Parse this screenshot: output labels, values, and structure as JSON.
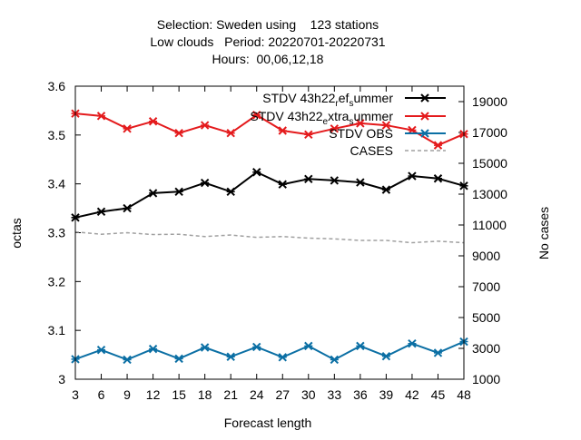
{
  "chart_data": {
    "type": "line",
    "title_lines": [
      "Selection: Sweden using    123 stations",
      "Low clouds   Period: 20220701-20220731",
      "Hours:  00,06,12,18"
    ],
    "xlabel": "Forecast length",
    "ylabel": "octas",
    "y2label": "No cases",
    "x": [
      3,
      6,
      9,
      12,
      15,
      18,
      21,
      24,
      27,
      30,
      33,
      36,
      39,
      42,
      45,
      48
    ],
    "xlim": [
      3,
      48
    ],
    "ylim": [
      3.0,
      3.6
    ],
    "y2lim": [
      1000,
      20000
    ],
    "yticks": [
      "3",
      "3.1",
      "3.2",
      "3.3",
      "3.4",
      "3.5",
      "3.6"
    ],
    "y2ticks": [
      "1000",
      "3000",
      "5000",
      "7000",
      "9000",
      "11000",
      "13000",
      "15000",
      "17000",
      "19000"
    ],
    "legend_position": "top-right",
    "series": [
      {
        "name": "STDV 43h22_ref_summer",
        "legend_main": "STDV 43h22",
        "legend_parts": [
          {
            "t": "r",
            "sub": true
          },
          {
            "t": "ef",
            "sub": false
          },
          {
            "t": "s",
            "sub": true
          },
          {
            "t": "ummer",
            "sub": false
          }
        ],
        "color": "#000000",
        "axis": "y",
        "marker": "x",
        "values": [
          3.331,
          3.343,
          3.35,
          3.381,
          3.384,
          3.402,
          3.384,
          3.424,
          3.399,
          3.41,
          3.407,
          3.403,
          3.388,
          3.416,
          3.411,
          3.396
        ]
      },
      {
        "name": "STDV 43h22_extra_summer",
        "legend_main": "STDV 43h22",
        "legend_parts": [
          {
            "t": "e",
            "sub": true
          },
          {
            "t": "xtra",
            "sub": false
          },
          {
            "t": "s",
            "sub": true
          },
          {
            "t": "ummer",
            "sub": false
          }
        ],
        "color": "#e41a1c",
        "axis": "y",
        "marker": "x",
        "values": [
          3.544,
          3.539,
          3.513,
          3.528,
          3.504,
          3.52,
          3.504,
          3.541,
          3.509,
          3.501,
          3.513,
          3.524,
          3.52,
          3.51,
          3.479,
          3.502
        ]
      },
      {
        "name": "STDV OBS",
        "legend_main": "STDV OBS",
        "legend_parts": [],
        "color": "#0b6fa4",
        "axis": "y",
        "marker": "x",
        "values": [
          3.041,
          3.06,
          3.04,
          3.062,
          3.042,
          3.065,
          3.046,
          3.066,
          3.045,
          3.068,
          3.04,
          3.068,
          3.047,
          3.073,
          3.054,
          3.077
        ]
      },
      {
        "name": "CASES",
        "legend_main": "CASES",
        "legend_parts": [],
        "color": "#a0a0a0",
        "axis": "y2",
        "marker": "none",
        "dashed": true,
        "values": [
          10550,
          10400,
          10500,
          10380,
          10400,
          10250,
          10350,
          10200,
          10250,
          10150,
          10100,
          10000,
          10000,
          9850,
          9950,
          9850
        ]
      }
    ]
  }
}
